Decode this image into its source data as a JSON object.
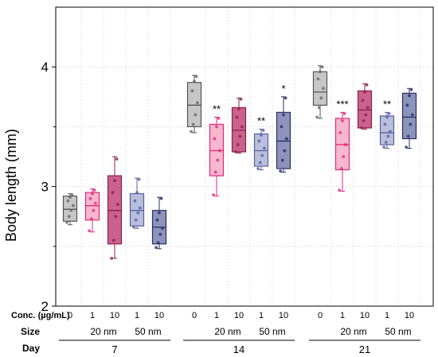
{
  "chart_data": {
    "type": "box",
    "ylabel": "Body length (mm)",
    "ylim": [
      2,
      4.5
    ],
    "yticks": [
      "2",
      "3",
      "4"
    ],
    "grid": true,
    "row_labels": {
      "conc": "Conc. (µg/mL)",
      "size": "Size",
      "day": "Day"
    },
    "size_labels": [
      "20 nm",
      "50 nm"
    ],
    "colors": {
      "control": {
        "fill": "#c6c6c6",
        "stroke": "#555555",
        "dot": "#666666"
      },
      "20nm_1": {
        "fill": "#f7b7cf",
        "stroke": "#e0287a",
        "dot": "#e0287a"
      },
      "20nm_10": {
        "fill": "#c9628c",
        "stroke": "#8c1e4c",
        "dot": "#8c1e4c"
      },
      "50nm_1": {
        "fill": "#b9bedc",
        "stroke": "#5a60a0",
        "dot": "#5a60a0"
      },
      "50nm_10": {
        "fill": "#8d93bb",
        "stroke": "#272d64",
        "dot": "#272d64"
      }
    },
    "groups": [
      {
        "day": "7",
        "boxes": [
          {
            "conc": "0",
            "style": "control",
            "min": 2.68,
            "q1": 2.71,
            "median": 2.81,
            "q3": 2.92,
            "max": 2.94,
            "sig": "",
            "points": [
              2.7,
              2.75,
              2.8,
              2.84,
              2.88,
              2.91,
              2.93
            ]
          },
          {
            "conc": "1",
            "style": "20nm_1",
            "min": 2.62,
            "q1": 2.72,
            "median": 2.84,
            "q3": 2.95,
            "max": 2.98,
            "sig": "",
            "points": [
              2.63,
              2.73,
              2.8,
              2.86,
              2.9,
              2.94,
              2.97
            ]
          },
          {
            "conc": "10",
            "style": "20nm_10",
            "min": 2.4,
            "q1": 2.52,
            "median": 2.8,
            "q3": 3.09,
            "max": 3.25,
            "sig": "",
            "points": [
              2.4,
              2.55,
              2.75,
              2.85,
              2.95,
              3.05,
              3.23
            ]
          },
          {
            "conc": "1",
            "style": "50nm_1",
            "min": 2.65,
            "q1": 2.67,
            "median": 2.8,
            "q3": 2.94,
            "max": 3.07,
            "sig": "",
            "points": [
              2.66,
              2.72,
              2.78,
              2.82,
              2.88,
              2.95,
              3.06
            ]
          },
          {
            "conc": "10",
            "style": "50nm_10",
            "min": 2.48,
            "q1": 2.52,
            "median": 2.66,
            "q3": 2.8,
            "max": 2.91,
            "sig": "",
            "points": [
              2.49,
              2.53,
              2.6,
              2.65,
              2.72,
              2.78,
              2.9
            ]
          }
        ]
      },
      {
        "day": "14",
        "boxes": [
          {
            "conc": "0",
            "style": "control",
            "min": 3.45,
            "q1": 3.5,
            "median": 3.68,
            "q3": 3.87,
            "max": 3.93,
            "sig": "",
            "points": [
              3.46,
              3.52,
              3.6,
              3.7,
              3.8,
              3.88,
              3.92
            ]
          },
          {
            "conc": "1",
            "style": "20nm_1",
            "min": 2.92,
            "q1": 3.09,
            "median": 3.3,
            "q3": 3.52,
            "max": 3.58,
            "sig": "**",
            "points": [
              2.93,
              3.12,
              3.22,
              3.3,
              3.4,
              3.5,
              3.57
            ]
          },
          {
            "conc": "10",
            "style": "20nm_10",
            "min": 3.28,
            "q1": 3.29,
            "median": 3.47,
            "q3": 3.66,
            "max": 3.74,
            "sig": "",
            "points": [
              3.29,
              3.35,
              3.42,
              3.5,
              3.58,
              3.65,
              3.73
            ]
          },
          {
            "conc": "1",
            "style": "50nm_1",
            "min": 3.14,
            "q1": 3.17,
            "median": 3.3,
            "q3": 3.44,
            "max": 3.48,
            "sig": "**",
            "points": [
              3.15,
              3.2,
              3.26,
              3.32,
              3.38,
              3.43,
              3.47
            ]
          },
          {
            "conc": "10",
            "style": "50nm_10",
            "min": 3.12,
            "q1": 3.15,
            "median": 3.38,
            "q3": 3.62,
            "max": 3.75,
            "sig": "*",
            "points": [
              3.13,
              3.22,
              3.3,
              3.4,
              3.5,
              3.6,
              3.74
            ]
          }
        ]
      },
      {
        "day": "21",
        "boxes": [
          {
            "conc": "0",
            "style": "control",
            "min": 3.57,
            "q1": 3.68,
            "median": 3.79,
            "q3": 3.96,
            "max": 4.01,
            "sig": "",
            "points": [
              3.58,
              3.66,
              3.74,
              3.82,
              3.9,
              3.96,
              4.0
            ]
          },
          {
            "conc": "1",
            "style": "20nm_1",
            "min": 2.96,
            "q1": 3.14,
            "median": 3.35,
            "q3": 3.57,
            "max": 3.62,
            "sig": "***",
            "points": [
              2.97,
              3.15,
              3.25,
              3.35,
              3.45,
              3.55,
              3.61
            ]
          },
          {
            "conc": "10",
            "style": "20nm_10",
            "min": 3.48,
            "q1": 3.49,
            "median": 3.64,
            "q3": 3.8,
            "max": 3.86,
            "sig": "",
            "points": [
              3.49,
              3.55,
              3.6,
              3.66,
              3.72,
              3.79,
              3.85
            ]
          },
          {
            "conc": "1",
            "style": "50nm_1",
            "min": 3.32,
            "q1": 3.35,
            "median": 3.45,
            "q3": 3.59,
            "max": 3.62,
            "sig": "**",
            "points": [
              3.33,
              3.37,
              3.42,
              3.46,
              3.52,
              3.58,
              3.61
            ]
          },
          {
            "conc": "10",
            "style": "50nm_10",
            "min": 3.32,
            "q1": 3.4,
            "median": 3.58,
            "q3": 3.78,
            "max": 3.82,
            "sig": "",
            "points": [
              3.33,
              3.42,
              3.52,
              3.6,
              3.68,
              3.76,
              3.81
            ]
          }
        ]
      }
    ]
  }
}
